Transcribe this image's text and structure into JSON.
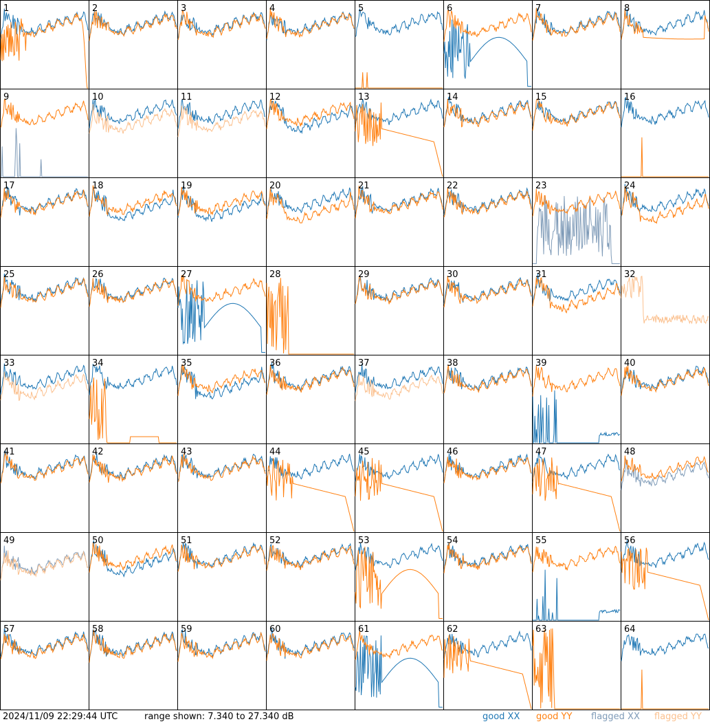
{
  "chart_data": {
    "type": "line",
    "panel_count": 64,
    "panel_labels": [
      "1",
      "2",
      "3",
      "4",
      "5",
      "6",
      "7",
      "8",
      "9",
      "10",
      "11",
      "12",
      "13",
      "14",
      "15",
      "16",
      "17",
      "18",
      "19",
      "20",
      "21",
      "22",
      "23",
      "24",
      "25",
      "26",
      "27",
      "28",
      "29",
      "30",
      "31",
      "32",
      "33",
      "34",
      "35",
      "36",
      "37",
      "38",
      "39",
      "40",
      "41",
      "42",
      "43",
      "44",
      "45",
      "46",
      "47",
      "48",
      "49",
      "50",
      "51",
      "52",
      "53",
      "54",
      "55",
      "56",
      "57",
      "58",
      "59",
      "60",
      "61",
      "62",
      "63",
      "64"
    ],
    "ylim": [
      7.34,
      27.34
    ],
    "ylabel": "dB",
    "series": [
      {
        "name": "good XX",
        "color": "#1f77b4"
      },
      {
        "name": "good YY",
        "color": "#ff7f0e"
      },
      {
        "name": "flagged XX",
        "color": "#7f9bb8"
      },
      {
        "name": "flagged YY",
        "color": "#fbc08e"
      }
    ]
  },
  "footer": {
    "timestamp": "2024/11/09 22:29:44 UTC",
    "range": "range shown: 7.340 to 27.340 dB"
  },
  "legend": {
    "good_xx": "good XX",
    "good_yy": "good YY",
    "flagged_xx": "flagged XX",
    "flagged_yy": "flagged YY",
    "colors": {
      "good_xx": "#1f77b4",
      "good_yy": "#ff7f0e",
      "flagged_xx": "#7f9bb8",
      "flagged_yy": "#fbc08e"
    }
  }
}
